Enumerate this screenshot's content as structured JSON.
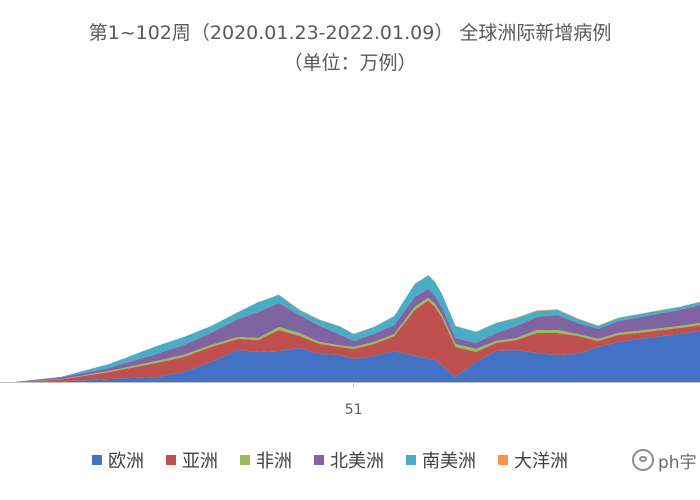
{
  "chart_data": {
    "type": "area",
    "stacked": true,
    "title": "第1~102周（2020.01.23-2022.01.09） 全球洲际新增病例",
    "subtitle": "（单位：万例）",
    "x_ticks": [
      {
        "week": 51,
        "label": "51"
      }
    ],
    "x_range": [
      1,
      102
    ],
    "series": [
      {
        "name": "欧洲",
        "color": "#4472c4",
        "points": [
          [
            1,
            0
          ],
          [
            8,
            0.5
          ],
          [
            15,
            3
          ],
          [
            22,
            5
          ],
          [
            26,
            10
          ],
          [
            30,
            20
          ],
          [
            34,
            32
          ],
          [
            37,
            30
          ],
          [
            40,
            31
          ],
          [
            43,
            34
          ],
          [
            46,
            28
          ],
          [
            49,
            27
          ],
          [
            51,
            23
          ],
          [
            54,
            26
          ],
          [
            57,
            31
          ],
          [
            60,
            26
          ],
          [
            63,
            22
          ],
          [
            66,
            5
          ],
          [
            69,
            20
          ],
          [
            72,
            31
          ],
          [
            75,
            32
          ],
          [
            78,
            29
          ],
          [
            81,
            27
          ],
          [
            84,
            28
          ],
          [
            87,
            35
          ],
          [
            90,
            40
          ],
          [
            94,
            44
          ],
          [
            99,
            48
          ],
          [
            102,
            51
          ]
        ]
      },
      {
        "name": "亚洲",
        "color": "#c0504d",
        "points": [
          [
            1,
            0
          ],
          [
            8,
            2
          ],
          [
            15,
            7
          ],
          [
            22,
            14
          ],
          [
            26,
            15
          ],
          [
            30,
            15
          ],
          [
            34,
            11
          ],
          [
            37,
            12
          ],
          [
            40,
            21
          ],
          [
            43,
            12
          ],
          [
            46,
            10
          ],
          [
            49,
            8
          ],
          [
            51,
            10
          ],
          [
            54,
            12
          ],
          [
            57,
            15
          ],
          [
            60,
            46
          ],
          [
            62,
            58
          ],
          [
            64,
            48
          ],
          [
            66,
            30
          ],
          [
            69,
            10
          ],
          [
            72,
            8
          ],
          [
            75,
            10
          ],
          [
            78,
            20
          ],
          [
            81,
            22
          ],
          [
            84,
            18
          ],
          [
            87,
            6
          ],
          [
            90,
            7
          ],
          [
            94,
            6
          ],
          [
            99,
            6
          ],
          [
            102,
            6
          ]
        ]
      },
      {
        "name": "非洲",
        "color": "#9bbb59",
        "points": [
          [
            1,
            0
          ],
          [
            8,
            0.3
          ],
          [
            15,
            1
          ],
          [
            22,
            2
          ],
          [
            26,
            2
          ],
          [
            30,
            2
          ],
          [
            34,
            2
          ],
          [
            37,
            2
          ],
          [
            40,
            3
          ],
          [
            43,
            3
          ],
          [
            46,
            2
          ],
          [
            49,
            1.5
          ],
          [
            51,
            2
          ],
          [
            54,
            2
          ],
          [
            57,
            2
          ],
          [
            60,
            3
          ],
          [
            63,
            3
          ],
          [
            66,
            3
          ],
          [
            69,
            3
          ],
          [
            72,
            2
          ],
          [
            75,
            2
          ],
          [
            78,
            3
          ],
          [
            81,
            3
          ],
          [
            84,
            2
          ],
          [
            87,
            2
          ],
          [
            90,
            2
          ],
          [
            94,
            2
          ],
          [
            99,
            2
          ],
          [
            102,
            2
          ]
        ]
      },
      {
        "name": "北美洲",
        "color": "#8064a2",
        "points": [
          [
            1,
            0
          ],
          [
            8,
            2
          ],
          [
            15,
            3
          ],
          [
            22,
            7
          ],
          [
            26,
            10
          ],
          [
            30,
            12
          ],
          [
            34,
            18
          ],
          [
            37,
            26
          ],
          [
            40,
            24
          ],
          [
            43,
            18
          ],
          [
            46,
            16
          ],
          [
            49,
            11
          ],
          [
            51,
            6
          ],
          [
            54,
            8
          ],
          [
            57,
            9
          ],
          [
            60,
            10
          ],
          [
            63,
            8
          ],
          [
            66,
            6
          ],
          [
            69,
            6
          ],
          [
            72,
            8
          ],
          [
            75,
            12
          ],
          [
            78,
            13
          ],
          [
            81,
            15
          ],
          [
            84,
            11
          ],
          [
            87,
            10
          ],
          [
            90,
            12
          ],
          [
            94,
            14
          ],
          [
            99,
            16
          ],
          [
            102,
            18
          ]
        ]
      },
      {
        "name": "南美洲",
        "color": "#4bacc6",
        "points": [
          [
            1,
            0
          ],
          [
            8,
            0.5
          ],
          [
            15,
            4
          ],
          [
            22,
            8
          ],
          [
            26,
            8
          ],
          [
            30,
            7
          ],
          [
            34,
            7
          ],
          [
            37,
            10
          ],
          [
            40,
            8
          ],
          [
            43,
            5
          ],
          [
            46,
            6
          ],
          [
            49,
            8
          ],
          [
            51,
            7
          ],
          [
            54,
            7
          ],
          [
            57,
            9
          ],
          [
            60,
            13
          ],
          [
            63,
            14
          ],
          [
            66,
            12
          ],
          [
            69,
            11
          ],
          [
            72,
            10
          ],
          [
            75,
            8
          ],
          [
            78,
            6
          ],
          [
            81,
            5
          ],
          [
            84,
            4
          ],
          [
            87,
            3
          ],
          [
            90,
            3
          ],
          [
            94,
            3
          ],
          [
            99,
            3
          ],
          [
            102,
            3
          ]
        ]
      },
      {
        "name": "大洋洲",
        "color": "#f79646",
        "points": [
          [
            1,
            0
          ],
          [
            34,
            0
          ],
          [
            37,
            0
          ],
          [
            40,
            0.5
          ],
          [
            43,
            0.5
          ],
          [
            51,
            0.2
          ],
          [
            60,
            0.2
          ],
          [
            63,
            0.2
          ],
          [
            66,
            0.2
          ],
          [
            69,
            0.2
          ],
          [
            72,
            0.3
          ],
          [
            75,
            0.5
          ],
          [
            78,
            0.6
          ],
          [
            81,
            0.7
          ],
          [
            84,
            0.6
          ],
          [
            87,
            0.5
          ],
          [
            90,
            0.4
          ],
          [
            94,
            0.3
          ],
          [
            99,
            0.3
          ],
          [
            102,
            0.3
          ]
        ]
      }
    ]
  },
  "watermark": {
    "text": "ph宇"
  }
}
